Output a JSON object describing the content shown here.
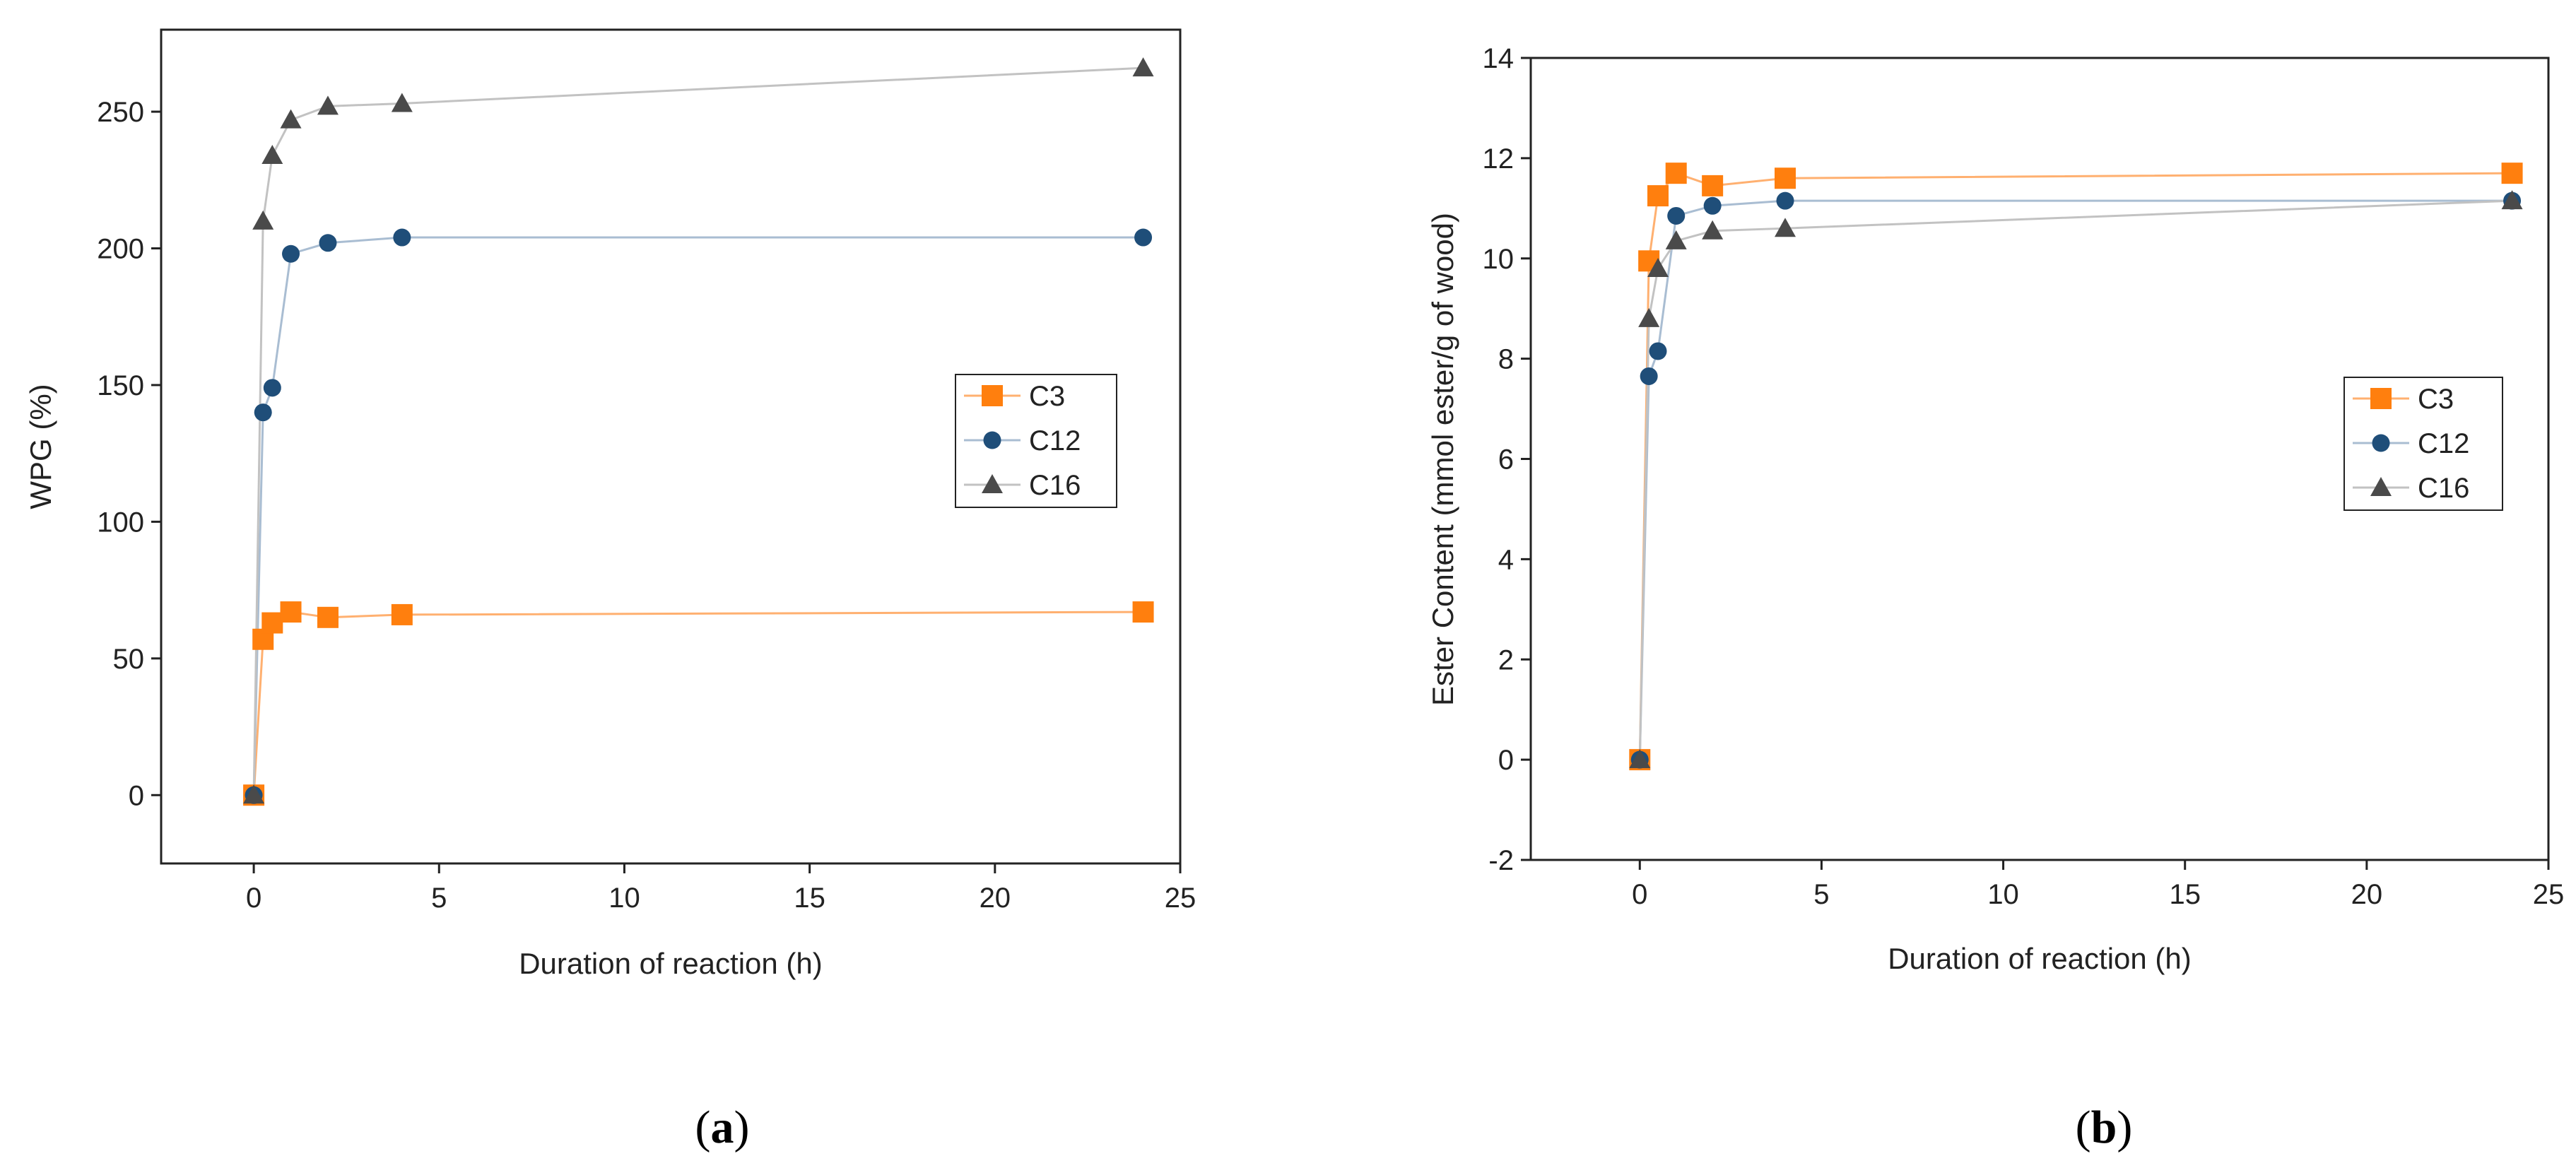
{
  "colors": {
    "C3": "#ff7f0e",
    "C12": "#1f4e79",
    "C16": "#4a4a4a",
    "C3_line": "#ffb070",
    "C12_line": "#a9bdd2",
    "C16_line": "#c2c2c2",
    "axis": "#222222"
  },
  "chart_data": [
    {
      "type": "line",
      "panel_label": "a",
      "xlabel": "Duration of reaction (h)",
      "ylabel": "WPG (%)",
      "xlim": [
        -2.5,
        25
      ],
      "ylim": [
        -25,
        280
      ],
      "xticks": [
        0,
        5,
        10,
        15,
        20,
        25
      ],
      "yticks": [
        0,
        50,
        100,
        150,
        200,
        250
      ],
      "grid": false,
      "legend_position": "center-right",
      "series": [
        {
          "name": "C3",
          "marker": "square",
          "x": [
            0,
            0.25,
            0.5,
            1,
            2,
            4,
            24
          ],
          "y": [
            0,
            57,
            63,
            67,
            65,
            66,
            67
          ]
        },
        {
          "name": "C12",
          "marker": "circle",
          "x": [
            0,
            0.25,
            0.5,
            1,
            2,
            4,
            24
          ],
          "y": [
            0,
            140,
            149,
            198,
            202,
            204,
            204
          ]
        },
        {
          "name": "C16",
          "marker": "triangle",
          "x": [
            0,
            0.25,
            0.5,
            1,
            2,
            4,
            24
          ],
          "y": [
            0,
            210,
            234,
            247,
            252,
            253,
            266
          ]
        }
      ]
    },
    {
      "type": "line",
      "panel_label": "b",
      "xlabel": "Duration of reaction (h)",
      "ylabel": "Ester Content (mmol ester/g of wood)",
      "xlim": [
        -3,
        25
      ],
      "ylim": [
        -2,
        14
      ],
      "xticks": [
        0,
        5,
        10,
        15,
        20,
        25
      ],
      "yticks": [
        -2,
        0,
        2,
        4,
        6,
        8,
        10,
        12,
        14
      ],
      "grid": false,
      "legend_position": "center-right",
      "series": [
        {
          "name": "C3",
          "marker": "square",
          "x": [
            0,
            0.25,
            0.5,
            1,
            2,
            4,
            24
          ],
          "y": [
            0,
            9.95,
            11.25,
            11.7,
            11.45,
            11.6,
            11.7
          ]
        },
        {
          "name": "C12",
          "marker": "circle",
          "x": [
            0,
            0.25,
            0.5,
            1,
            2,
            4,
            24
          ],
          "y": [
            0,
            7.65,
            8.15,
            10.85,
            11.05,
            11.15,
            11.15
          ]
        },
        {
          "name": "C16",
          "marker": "triangle",
          "x": [
            0,
            0.25,
            0.5,
            1,
            2,
            4,
            24
          ],
          "y": [
            0,
            8.8,
            9.8,
            10.35,
            10.55,
            10.6,
            11.15
          ]
        }
      ]
    }
  ]
}
